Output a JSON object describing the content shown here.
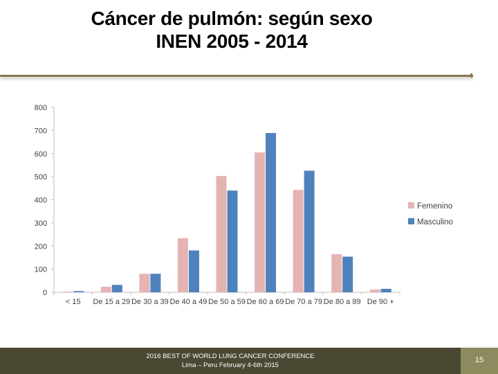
{
  "title": {
    "line1": "Cáncer de pulmón: según sexo",
    "line2": "INEN 2005 - 2014"
  },
  "footer": {
    "line1": "2016 BEST OF WORLD LUNG CANCER CONFERENCE",
    "line2": "Lima – Peru February 4-6th 2015",
    "page": "15"
  },
  "colors": {
    "femenino": "#e6b3b3",
    "masculino": "#4f81bd",
    "footer_bg": "#4a4732",
    "page_box": "#8d8a5e"
  },
  "chart_data": {
    "type": "bar",
    "categories": [
      "< 15",
      "De 15 a 29",
      "De 30 a 39",
      "De 40 a 49",
      "De 50 a 59",
      "De 60 a 69",
      "De 70 a 79",
      "De 80 a 89",
      "De 90 +"
    ],
    "series": [
      {
        "name": "Femenino",
        "values": [
          3,
          24,
          80,
          234,
          503,
          605,
          443,
          165,
          12
        ]
      },
      {
        "name": "Masculino",
        "values": [
          5,
          32,
          80,
          181,
          440,
          689,
          526,
          154,
          15
        ]
      }
    ],
    "ylim": [
      0,
      800
    ],
    "yticks": [
      0,
      100,
      200,
      300,
      400,
      500,
      600,
      700,
      800
    ],
    "legend": "right",
    "grid": false
  }
}
